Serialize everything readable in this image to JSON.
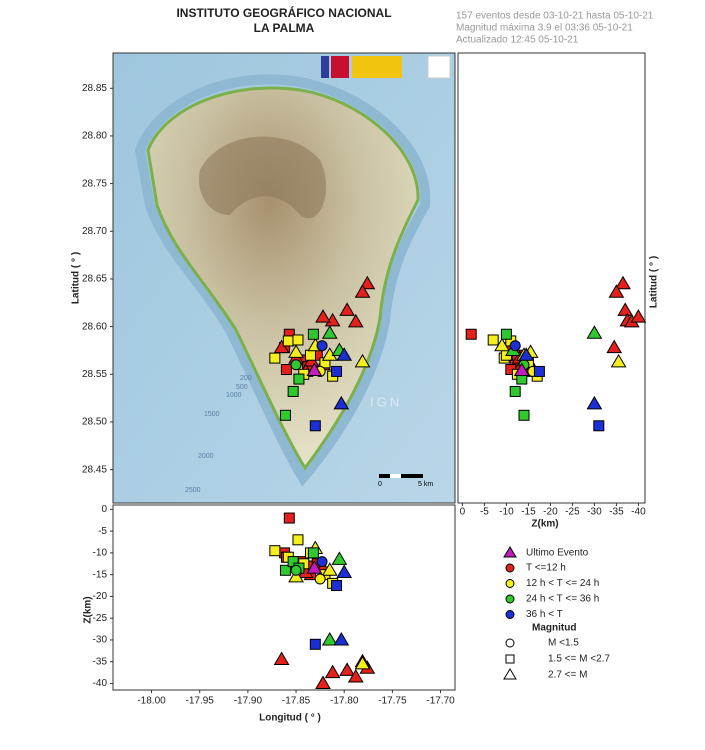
{
  "chart_data": {
    "type": "scatter",
    "title": "INSTITUTO GEOGRÁFICO NACIONAL",
    "subtitle": "LA PALMA",
    "info": [
      "157 eventos desde 03-10-21 hasta 05-10-21",
      "Magnitud máxima 3.9 el 03:36 05-10-21",
      "Actualizado   12:45  05-10-21"
    ],
    "x_label": "Longitud ( ° )",
    "y_label": "Latitud ( ° )",
    "y2_label": "Latitud ( ° )",
    "z_label": "Z(km)",
    "z2_label": "Z(km)",
    "xlim": [
      -18.04,
      -17.685
    ],
    "ylim": [
      28.415,
      28.887
    ],
    "zlim": [
      1.0,
      -41.5
    ],
    "xticks": [
      {
        "value": -18.0,
        "label": "-18.00"
      },
      {
        "value": -17.95,
        "label": "-17.95"
      },
      {
        "value": -17.9,
        "label": "-17.90"
      },
      {
        "value": -17.85,
        "label": "-17.85"
      },
      {
        "value": -17.8,
        "label": "-17.80"
      },
      {
        "value": -17.75,
        "label": "-17.75"
      },
      {
        "value": -17.7,
        "label": "-17.70"
      }
    ],
    "yticks": [
      28.45,
      {
        "value": 28.5,
        "label": "28.50"
      },
      28.55,
      {
        "value": 28.6,
        "label": "28.60"
      },
      28.65,
      {
        "value": 28.7,
        "label": "28.70"
      },
      28.75,
      {
        "value": 28.8,
        "label": "28.80"
      },
      28.85
    ],
    "zticks_right": [
      0,
      -5,
      -10,
      -15,
      -20,
      -25,
      -30,
      -35,
      -40
    ],
    "zticks_bottom": [
      0,
      -5,
      -10,
      -15,
      -20,
      -25,
      -30,
      -35,
      -40
    ],
    "map_text": [
      "200",
      "500",
      "1000",
      "1500",
      "2000",
      "2500",
      "0",
      "5 km",
      "IGN"
    ],
    "last_event": {
      "name": "Ultimo Evento",
      "color": "#c21bc2",
      "lon": -17.831,
      "lat": 28.554,
      "depth": -13.5
    },
    "series": [
      {
        "name": "T <=12 h",
        "color": "#e3201b",
        "lon": [
          -17.857,
          -17.862,
          -17.845,
          -17.838,
          -17.86,
          -17.828,
          -17.776,
          -17.781,
          -17.797,
          -17.812,
          -17.788,
          -17.822,
          -17.865,
          -17.85,
          -17.834,
          -17.84,
          -17.822
        ],
        "lat": [
          28.592,
          28.578,
          28.565,
          28.558,
          28.555,
          28.57,
          28.645,
          28.636,
          28.617,
          28.606,
          28.605,
          28.61,
          28.578,
          28.567,
          28.564,
          28.553,
          28.56
        ],
        "depth": [
          -2,
          -10,
          -12,
          -13,
          -11,
          -12.5,
          -36.5,
          -35,
          -37,
          -37.5,
          -38.5,
          -40,
          -34.5,
          -13,
          -15,
          -14.5,
          -13.5
        ],
        "marker": [
          "square",
          "square",
          "square",
          "square",
          "square",
          "square",
          "triangle",
          "triangle",
          "triangle",
          "triangle",
          "triangle",
          "triangle",
          "triangle",
          "triangle",
          "triangle",
          "triangle",
          "triangle"
        ]
      },
      {
        "name": "12 h  < T <= 24 h",
        "color": "#f4ee1c",
        "lon": [
          -17.872,
          -17.858,
          -17.848,
          -17.835,
          -17.82,
          -17.812,
          -17.842,
          -17.781,
          -17.83,
          -17.815,
          -17.85,
          -17.825
        ],
        "lat": [
          28.567,
          28.585,
          28.586,
          28.57,
          28.562,
          28.548,
          28.55,
          28.563,
          28.58,
          28.57,
          28.573,
          28.553
        ],
        "depth": [
          -9.5,
          -11,
          -7,
          -10,
          -15,
          -17,
          -12.5,
          -35.5,
          -9,
          -14,
          -15.5,
          -16
        ],
        "marker": [
          "square",
          "square",
          "square",
          "square",
          "square",
          "square",
          "square",
          "triangle",
          "triangle",
          "triangle",
          "triangle",
          "circle"
        ]
      },
      {
        "name": "24 h  < T <= 36 h",
        "color": "#2fc92f",
        "lon": [
          -17.861,
          -17.853,
          -17.832,
          -17.847,
          -17.815,
          -17.805,
          -17.85
        ],
        "lat": [
          28.507,
          28.532,
          28.592,
          28.545,
          28.593,
          28.575,
          28.56
        ],
        "depth": [
          -14,
          -12,
          -10,
          -13.5,
          -30,
          -11.5,
          -14
        ],
        "marker": [
          "square",
          "square",
          "square",
          "square",
          "triangle",
          "triangle",
          "circle"
        ]
      },
      {
        "name": "36 h <  T",
        "color": "#1b2fd4",
        "lon": [
          -17.803,
          -17.83,
          -17.808,
          -17.8,
          -17.823
        ],
        "lat": [
          28.519,
          28.496,
          28.553,
          28.57,
          28.58
        ],
        "depth": [
          -30,
          -31,
          -17.5,
          -14.5,
          -12
        ],
        "marker": [
          "triangle",
          "square",
          "square",
          "triangle",
          "circle"
        ]
      }
    ],
    "magnitude_legend": {
      "title": "Magnitud",
      "items": [
        {
          "label": "M <1.5",
          "marker": "circle"
        },
        {
          "label": "1.5 <= M <2.7",
          "marker": "square"
        },
        {
          "label": "2.7 <= M",
          "marker": "triangle"
        }
      ]
    }
  }
}
